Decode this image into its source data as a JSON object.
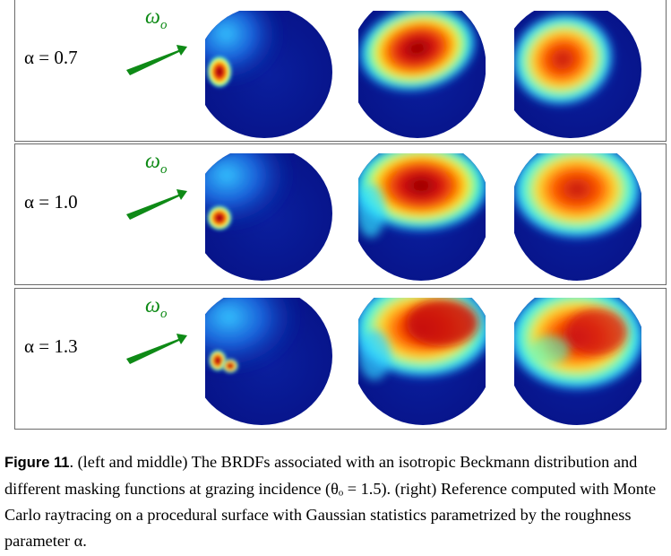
{
  "rows": [
    {
      "alpha_label": "α = 0.7",
      "omega_label": "ω",
      "omega_sub": "o"
    },
    {
      "alpha_label": "α = 1.0",
      "omega_label": "ω",
      "omega_sub": "o"
    },
    {
      "alpha_label": "α = 1.3",
      "omega_label": "ω",
      "omega_sub": "o"
    }
  ],
  "caption": {
    "figure_label": "Figure 11",
    "text": ". (left and middle) The BRDFs associated with an isotropic Beckmann distribution and different masking functions at grazing incidence (θₒ = 1.5). (right) Reference computed with Monte Carlo raytracing on a procedural surface with Gaussian statistics parametrized by the roughness parameter α."
  },
  "colors": {
    "background_blue": "#0a1a8c",
    "hot_red": "#8b0000",
    "arrow_green": "#0e8a16"
  }
}
